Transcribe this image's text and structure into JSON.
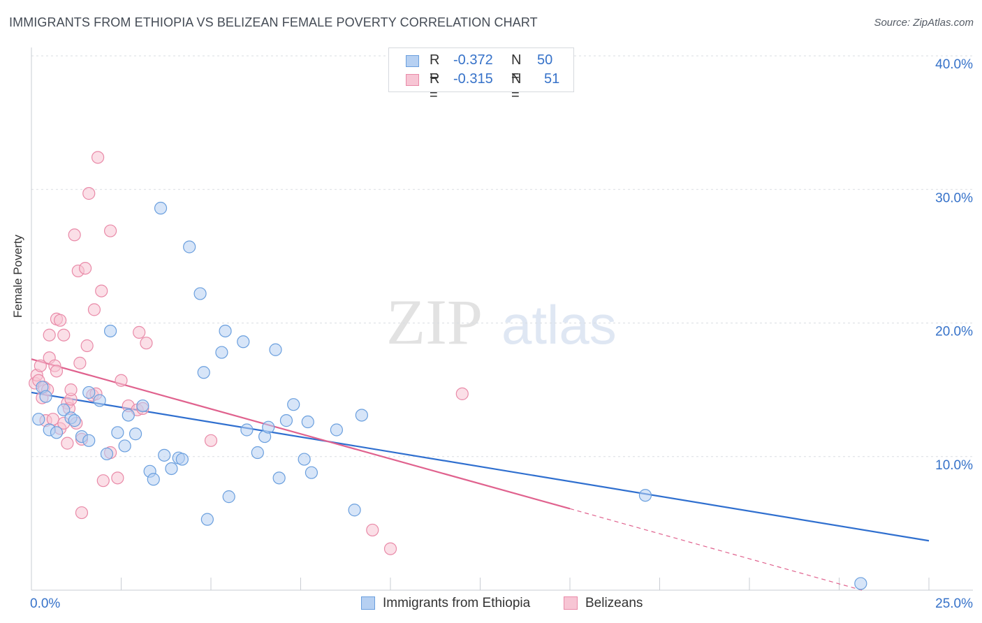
{
  "header": {
    "title": "IMMIGRANTS FROM ETHIOPIA VS BELIZEAN FEMALE POVERTY CORRELATION CHART",
    "source": "Source: ZipAtlas.com"
  },
  "watermark": {
    "zip": "ZIP",
    "atlas": "atlas"
  },
  "legend": {
    "rows": [
      {
        "r_label": "R =",
        "r_value": "-0.372",
        "n_label": "N =",
        "n_value": "50"
      },
      {
        "r_label": "R =",
        "r_value": "-0.315",
        "n_label": "N =",
        "n_value": "51"
      }
    ]
  },
  "chart_data": {
    "type": "scatter",
    "title": "IMMIGRANTS FROM ETHIOPIA VS BELIZEAN FEMALE POVERTY CORRELATION CHART",
    "xlabel": "",
    "ylabel": "Female Poverty",
    "xlim": [
      0,
      25
    ],
    "ylim": [
      0,
      40
    ],
    "x_tick_labels": [
      "0.0%",
      "25.0%"
    ],
    "y_ticks": [
      10,
      20,
      30,
      40
    ],
    "y_tick_labels": [
      "10.0%",
      "20.0%",
      "30.0%",
      "40.0%"
    ],
    "grid": "horizontal dashed",
    "legend_placement": "top-center and bottom",
    "colors": {
      "blue_fill": "#b6d0f2",
      "blue_stroke": "#6a9fde",
      "blue_line": "#2f6fcf",
      "pink_fill": "#f7c5d4",
      "pink_stroke": "#e98aa8",
      "pink_line": "#e0628e",
      "axis_label": "#3672c9",
      "grid": "#d9dde2"
    },
    "series": [
      {
        "name": "Immigrants from Ethiopia",
        "r": -0.372,
        "n": 50,
        "trend": {
          "x": [
            0,
            25
          ],
          "y": [
            14.8,
            3.7
          ]
        },
        "points": [
          [
            0.2,
            12.8
          ],
          [
            0.3,
            15.2
          ],
          [
            0.4,
            14.5
          ],
          [
            0.5,
            12.0
          ],
          [
            0.7,
            11.8
          ],
          [
            0.9,
            13.5
          ],
          [
            1.1,
            12.9
          ],
          [
            1.2,
            12.7
          ],
          [
            1.4,
            11.5
          ],
          [
            1.6,
            11.2
          ],
          [
            1.6,
            14.8
          ],
          [
            1.9,
            14.2
          ],
          [
            2.1,
            10.2
          ],
          [
            2.2,
            19.4
          ],
          [
            2.4,
            11.8
          ],
          [
            2.6,
            10.8
          ],
          [
            2.7,
            13.1
          ],
          [
            2.9,
            11.7
          ],
          [
            3.1,
            13.8
          ],
          [
            3.3,
            8.9
          ],
          [
            3.4,
            8.3
          ],
          [
            3.6,
            28.6
          ],
          [
            3.7,
            10.1
          ],
          [
            3.9,
            9.1
          ],
          [
            4.1,
            9.9
          ],
          [
            4.2,
            9.8
          ],
          [
            4.4,
            25.7
          ],
          [
            4.7,
            22.2
          ],
          [
            4.8,
            16.3
          ],
          [
            4.9,
            5.3
          ],
          [
            5.3,
            17.8
          ],
          [
            5.4,
            19.4
          ],
          [
            5.5,
            7.0
          ],
          [
            5.9,
            18.6
          ],
          [
            6.0,
            12.0
          ],
          [
            6.3,
            10.3
          ],
          [
            6.5,
            11.5
          ],
          [
            6.6,
            12.2
          ],
          [
            6.8,
            18.0
          ],
          [
            6.9,
            8.4
          ],
          [
            7.1,
            12.7
          ],
          [
            7.3,
            13.9
          ],
          [
            7.6,
            9.8
          ],
          [
            7.7,
            12.6
          ],
          [
            7.8,
            8.8
          ],
          [
            8.5,
            12.0
          ],
          [
            9.0,
            6.0
          ],
          [
            9.2,
            13.1
          ],
          [
            17.1,
            7.1
          ],
          [
            23.1,
            0.5
          ]
        ]
      },
      {
        "name": "Belizeans",
        "r": -0.315,
        "n": 51,
        "trend": {
          "x": [
            0,
            15
          ],
          "y": [
            17.3,
            6.1
          ]
        },
        "trend_dashed": {
          "x": [
            15,
            25
          ],
          "y": [
            6.1,
            -1.4
          ]
        },
        "points": [
          [
            0.1,
            15.5
          ],
          [
            0.15,
            16.1
          ],
          [
            0.2,
            15.7
          ],
          [
            0.25,
            16.8
          ],
          [
            0.3,
            14.4
          ],
          [
            0.35,
            15.2
          ],
          [
            0.4,
            12.7
          ],
          [
            0.45,
            15.0
          ],
          [
            0.5,
            17.4
          ],
          [
            0.5,
            19.1
          ],
          [
            0.6,
            12.8
          ],
          [
            0.65,
            16.8
          ],
          [
            0.7,
            16.4
          ],
          [
            0.7,
            20.3
          ],
          [
            0.8,
            12.1
          ],
          [
            0.8,
            20.2
          ],
          [
            0.9,
            12.5
          ],
          [
            0.9,
            19.1
          ],
          [
            1.0,
            11.0
          ],
          [
            1.0,
            14.0
          ],
          [
            1.05,
            13.6
          ],
          [
            1.1,
            14.3
          ],
          [
            1.1,
            15.0
          ],
          [
            1.2,
            26.6
          ],
          [
            1.25,
            12.5
          ],
          [
            1.3,
            23.9
          ],
          [
            1.35,
            17.0
          ],
          [
            1.4,
            11.3
          ],
          [
            1.4,
            5.8
          ],
          [
            1.5,
            24.1
          ],
          [
            1.55,
            18.3
          ],
          [
            1.6,
            29.7
          ],
          [
            1.7,
            14.6
          ],
          [
            1.75,
            21.0
          ],
          [
            1.8,
            14.7
          ],
          [
            1.85,
            32.4
          ],
          [
            1.95,
            22.4
          ],
          [
            2.0,
            8.2
          ],
          [
            2.2,
            26.9
          ],
          [
            2.2,
            10.3
          ],
          [
            2.4,
            8.4
          ],
          [
            2.5,
            15.7
          ],
          [
            2.7,
            13.8
          ],
          [
            2.95,
            13.5
          ],
          [
            3.0,
            19.3
          ],
          [
            3.1,
            13.6
          ],
          [
            3.2,
            18.5
          ],
          [
            5.0,
            11.2
          ],
          [
            9.5,
            4.5
          ],
          [
            10.0,
            3.1
          ],
          [
            12.0,
            14.7
          ]
        ]
      }
    ]
  }
}
